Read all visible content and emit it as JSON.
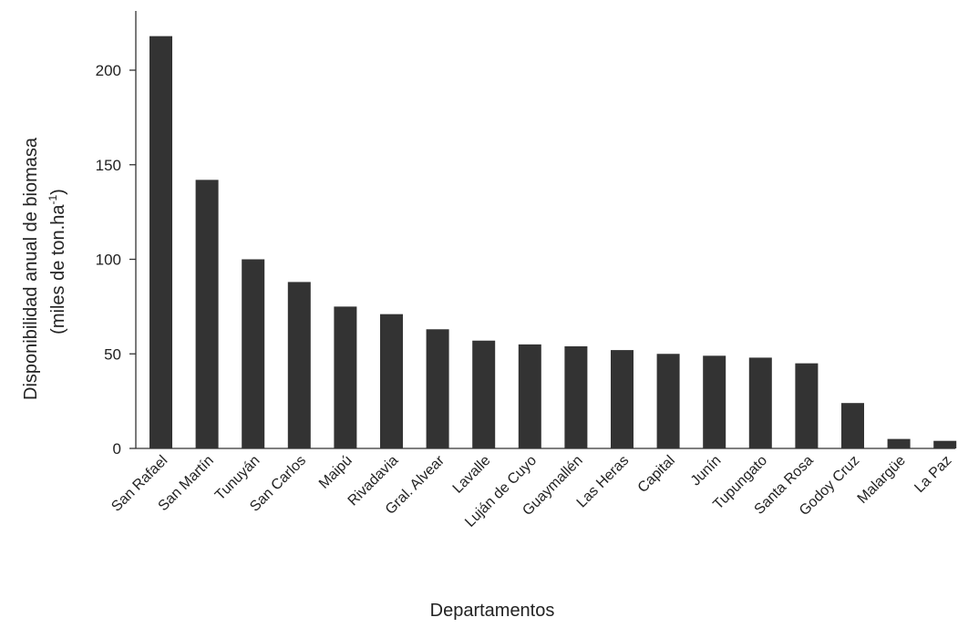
{
  "chart_data": {
    "type": "bar",
    "categories": [
      "San Rafael",
      "San Martín",
      "Tunuyán",
      "San Carlos",
      "Maipú",
      "Rivadavia",
      "Gral. Alvear",
      "Lavalle",
      "Luján de Cuyo",
      "Guaymallén",
      "Las Heras",
      "Capital",
      "Junín",
      "Tupungato",
      "Santa Rosa",
      "Godoy Cruz",
      "Malargüe",
      "La Paz"
    ],
    "values": [
      218,
      142,
      100,
      88,
      75,
      71,
      63,
      57,
      55,
      54,
      52,
      50,
      49,
      48,
      45,
      24,
      5,
      4
    ],
    "xlabel": "Departamentos",
    "ylabel_line1": "Disponibilidad anual de biomasa",
    "ylabel_line2_main": "(miles de ton.ha",
    "ylabel_line2_sup": "-1",
    "ylabel_line2_end": ")",
    "ylim": [
      0,
      230
    ],
    "yticks": [
      0,
      50,
      100,
      150,
      200
    ],
    "bar_color": "#333333",
    "grid": false
  }
}
